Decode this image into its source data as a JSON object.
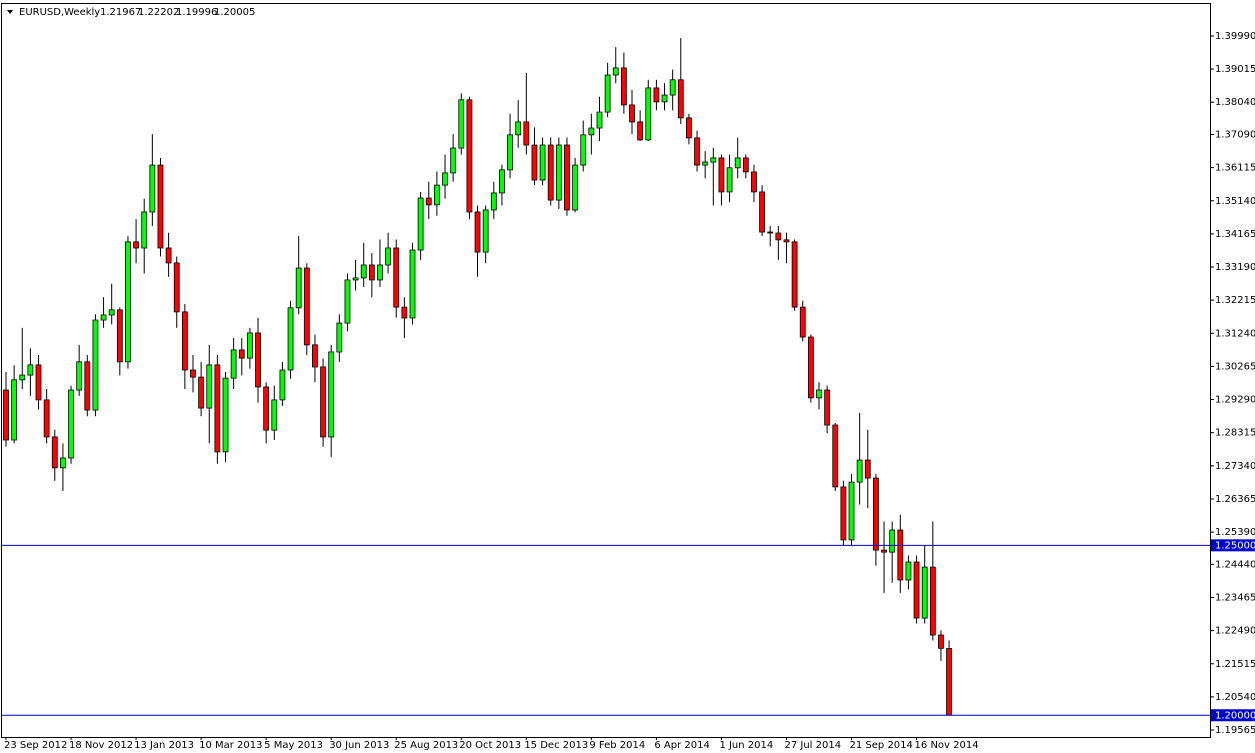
{
  "chart_data": {
    "type": "candlestick",
    "title": "EURUSD,Weekly",
    "categories": [
      "23 Sep 2012",
      null,
      null,
      null,
      null,
      null,
      null,
      null,
      "18 Nov 2012",
      null,
      null,
      null,
      null,
      null,
      null,
      null,
      "13 Jan 2013",
      null,
      null,
      null,
      null,
      null,
      null,
      null,
      "10 Mar 2013",
      null,
      null,
      null,
      null,
      null,
      null,
      null,
      "5 May 2013",
      null,
      null,
      null,
      null,
      null,
      null,
      null,
      "30 Jun 2013",
      null,
      null,
      null,
      null,
      null,
      null,
      null,
      "25 Aug 2013",
      null,
      null,
      null,
      null,
      null,
      null,
      null,
      "20 Oct 2013",
      null,
      null,
      null,
      null,
      null,
      null,
      null,
      "15 Dec 2013",
      null,
      null,
      null,
      null,
      null,
      null,
      null,
      "9 Feb 2014",
      null,
      null,
      null,
      null,
      null,
      null,
      null,
      "6 Apr 2014",
      null,
      null,
      null,
      null,
      null,
      null,
      null,
      "1 Jun 2014",
      null,
      null,
      null,
      null,
      null,
      null,
      null,
      "27 Jul 2014",
      null,
      null,
      null,
      null,
      null,
      null,
      null,
      "21 Sep 2014",
      null,
      null,
      null,
      null,
      null,
      null,
      null,
      "16 Nov 2014",
      null,
      null,
      null,
      null
    ],
    "open": [
      1.2957,
      1.281,
      1.2987,
      1.3001,
      1.3031,
      1.2928,
      1.2819,
      1.2728,
      1.2757,
      1.2957,
      1.304,
      1.2898,
      1.3163,
      1.3178,
      1.3193,
      1.304,
      1.3393,
      1.3375,
      1.3481,
      1.3619,
      1.3375,
      1.3331,
      1.3187,
      1.3016,
      1.2995,
      1.2904,
      1.3031,
      1.2775,
      1.2992,
      1.3075,
      1.3051,
      1.3125,
      1.2966,
      1.2839,
      1.2928,
      1.3016,
      1.3199,
      1.3316,
      1.309,
      1.3025,
      1.2819,
      1.3069,
      1.3154,
      1.3281,
      1.3287,
      1.3325,
      1.3281,
      1.3325,
      1.3375,
      1.3201,
      1.3169,
      1.3369,
      1.3522,
      1.3502,
      1.356,
      1.3596,
      1.3669,
      1.3811,
      1.3481,
      1.3363,
      1.3487,
      1.3537,
      1.3605,
      1.3708,
      1.3746,
      1.3678,
      1.3575,
      1.3678,
      1.3516,
      1.3678,
      1.3487,
      1.3619,
      1.3708,
      1.3728,
      1.3775,
      1.3884,
      1.3905,
      1.3796,
      1.3746,
      1.3693,
      1.3846,
      1.3805,
      1.3825,
      1.387,
      1.3758,
      1.3699,
      1.3619,
      1.3628,
      1.364,
      1.354,
      1.3611,
      1.364,
      1.3599,
      1.354,
      1.3422,
      1.3419,
      1.3399,
      1.3393,
      1.3201,
      1.3113,
      1.2934,
      1.2957,
      1.2854,
      1.2672,
      1.2516,
      1.2686,
      1.2751,
      1.2698,
      1.2486,
      1.248,
      1.2545,
      1.2398,
      1.2451,
      1.2286,
      1.2436,
      1.2236,
      1.21967
    ],
    "high": [
      1.301,
      1.303,
      1.314,
      1.308,
      1.306,
      1.296,
      1.284,
      1.28,
      1.297,
      1.309,
      1.306,
      1.318,
      1.323,
      1.327,
      1.32,
      1.341,
      1.346,
      1.352,
      1.371,
      1.364,
      1.342,
      1.335,
      1.321,
      1.306,
      1.304,
      1.309,
      1.306,
      1.301,
      1.311,
      1.311,
      1.314,
      1.317,
      1.298,
      1.297,
      1.304,
      1.322,
      1.341,
      1.333,
      1.312,
      1.305,
      1.309,
      1.318,
      1.33,
      1.334,
      1.339,
      1.336,
      1.34,
      1.342,
      1.34,
      1.323,
      1.339,
      1.354,
      1.357,
      1.36,
      1.365,
      1.371,
      1.383,
      1.382,
      1.35,
      1.35,
      1.357,
      1.362,
      1.377,
      1.381,
      1.389,
      1.373,
      1.37,
      1.37,
      1.37,
      1.37,
      1.364,
      1.375,
      1.377,
      1.382,
      1.392,
      1.3966,
      1.395,
      1.384,
      1.378,
      1.387,
      1.387,
      1.386,
      1.39,
      1.3993,
      1.377,
      1.372,
      1.366,
      1.367,
      1.365,
      1.365,
      1.37,
      1.365,
      1.362,
      1.356,
      1.344,
      1.344,
      1.342,
      1.34,
      1.322,
      1.312,
      1.298,
      1.297,
      1.286,
      1.269,
      1.271,
      1.289,
      1.284,
      1.271,
      1.257,
      1.257,
      1.259,
      1.247,
      1.247,
      1.25,
      1.257,
      1.225,
      1.22202
    ],
    "low": [
      1.279,
      1.28,
      1.296,
      1.294,
      1.29,
      1.28,
      1.269,
      1.266,
      1.274,
      1.294,
      1.288,
      1.288,
      1.314,
      1.315,
      1.3,
      1.302,
      1.333,
      1.33,
      1.344,
      1.335,
      1.329,
      1.314,
      1.296,
      1.295,
      1.288,
      1.28,
      1.274,
      1.2745,
      1.296,
      1.3,
      1.302,
      1.292,
      1.28,
      1.281,
      1.291,
      1.299,
      1.318,
      1.306,
      1.298,
      1.279,
      1.276,
      1.304,
      1.313,
      1.325,
      1.326,
      1.323,
      1.326,
      1.33,
      1.317,
      1.311,
      1.315,
      1.334,
      1.346,
      1.347,
      1.352,
      1.357,
      1.365,
      1.346,
      1.329,
      1.333,
      1.346,
      1.35,
      1.358,
      1.367,
      1.365,
      1.356,
      1.356,
      1.35,
      1.349,
      1.347,
      1.348,
      1.36,
      1.365,
      1.369,
      1.376,
      1.386,
      1.377,
      1.371,
      1.369,
      1.369,
      1.378,
      1.378,
      1.378,
      1.374,
      1.368,
      1.36,
      1.358,
      1.35,
      1.35,
      1.351,
      1.358,
      1.358,
      1.351,
      1.341,
      1.338,
      1.334,
      1.333,
      1.319,
      1.31,
      1.292,
      1.29,
      1.283,
      1.266,
      1.25,
      1.25,
      1.262,
      1.261,
      1.244,
      1.236,
      1.239,
      1.236,
      1.237,
      1.227,
      1.227,
      1.222,
      1.216,
      1.19996
    ],
    "close": [
      1.281,
      1.2987,
      1.3001,
      1.3031,
      1.2928,
      1.2819,
      1.2728,
      1.2757,
      1.2957,
      1.304,
      1.2898,
      1.3163,
      1.3178,
      1.3193,
      1.304,
      1.3393,
      1.3375,
      1.3481,
      1.3619,
      1.3375,
      1.3331,
      1.3187,
      1.3016,
      1.2995,
      1.2904,
      1.3031,
      1.2775,
      1.2992,
      1.3075,
      1.3051,
      1.3125,
      1.2966,
      1.2839,
      1.2928,
      1.3016,
      1.3199,
      1.3316,
      1.309,
      1.3025,
      1.2819,
      1.3069,
      1.3154,
      1.3281,
      1.3287,
      1.3325,
      1.3281,
      1.3325,
      1.3375,
      1.3201,
      1.3169,
      1.3369,
      1.3522,
      1.3502,
      1.356,
      1.3596,
      1.3669,
      1.3811,
      1.3481,
      1.3363,
      1.3487,
      1.3537,
      1.3605,
      1.3708,
      1.3746,
      1.3678,
      1.3575,
      1.3678,
      1.3516,
      1.3678,
      1.3487,
      1.3619,
      1.3708,
      1.3728,
      1.3775,
      1.3884,
      1.3905,
      1.3796,
      1.3746,
      1.3693,
      1.3846,
      1.3805,
      1.3825,
      1.387,
      1.3758,
      1.3699,
      1.3619,
      1.3628,
      1.364,
      1.354,
      1.3611,
      1.364,
      1.3599,
      1.354,
      1.3422,
      1.3419,
      1.3399,
      1.3393,
      1.3201,
      1.3113,
      1.2934,
      1.2957,
      1.2854,
      1.2672,
      1.2516,
      1.2686,
      1.2751,
      1.2698,
      1.2486,
      1.248,
      1.2545,
      1.2398,
      1.2451,
      1.2286,
      1.2436,
      1.2236,
      1.2197,
      1.20005
    ],
    "up_color": "#00ff00",
    "down_color": "#ff0000",
    "ylim": [
      1.1936,
      1.4093
    ],
    "yticks": [
      {
        "value": 1.3999,
        "label": "1.39990"
      },
      {
        "value": 1.39015,
        "label": "1.39015"
      },
      {
        "value": 1.3804,
        "label": "1.38040"
      },
      {
        "value": 1.3709,
        "label": "1.37090"
      },
      {
        "value": 1.36115,
        "label": "1.36115"
      },
      {
        "value": 1.3514,
        "label": "1.35140"
      },
      {
        "value": 1.34165,
        "label": "1.34165"
      },
      {
        "value": 1.3319,
        "label": "1.33190"
      },
      {
        "value": 1.32215,
        "label": "1.32215"
      },
      {
        "value": 1.3124,
        "label": "1.31240"
      },
      {
        "value": 1.30265,
        "label": "1.30265"
      },
      {
        "value": 1.2929,
        "label": "1.29290"
      },
      {
        "value": 1.28315,
        "label": "1.28315"
      },
      {
        "value": 1.2734,
        "label": "1.27340"
      },
      {
        "value": 1.26365,
        "label": "1.26365"
      },
      {
        "value": 1.2539,
        "label": "1.25390"
      },
      {
        "value": 1.2444,
        "label": "1.24440"
      },
      {
        "value": 1.23465,
        "label": "1.23465"
      },
      {
        "value": 1.2249,
        "label": "1.22490"
      },
      {
        "value": 1.21515,
        "label": "1.21515"
      },
      {
        "value": 1.2054,
        "label": "1.20540"
      },
      {
        "value": 1.19565,
        "label": "1.19565"
      }
    ],
    "hlines": [
      {
        "value": 1.25,
        "label": "1.25000",
        "color": "#0000cc"
      },
      {
        "value": 1.2,
        "label": "1.20000",
        "color": "#0000cc"
      }
    ],
    "grid": false
  }
}
